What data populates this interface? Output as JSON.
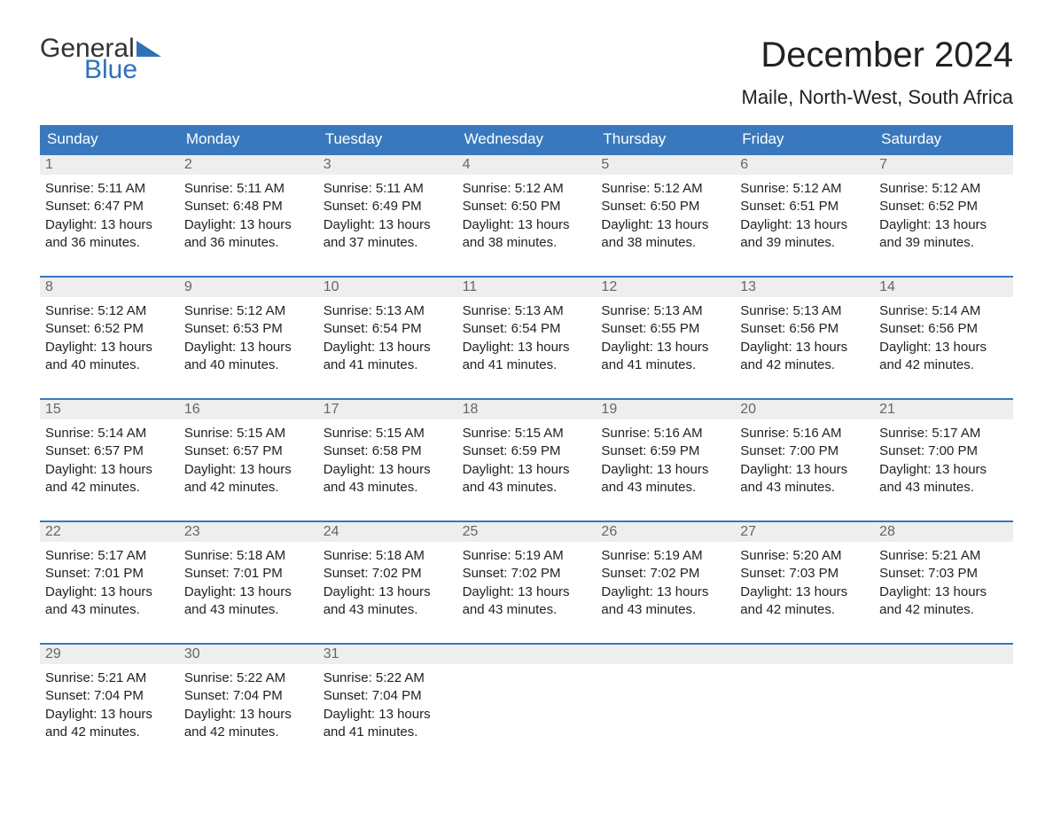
{
  "logo": {
    "part1": "General",
    "part2": "Blue"
  },
  "title": "December 2024",
  "location": "Maile, North-West, South Africa",
  "colors": {
    "header_bg": "#3a78bd",
    "header_text": "#ffffff",
    "daynum_bg": "#eeeeee",
    "daynum_text": "#666666",
    "body_text": "#222222",
    "logo_accent": "#2f72b9",
    "week_divider": "#3a78bd",
    "background": "#ffffff"
  },
  "typography": {
    "title_fontsize": 40,
    "location_fontsize": 22,
    "dow_fontsize": 17,
    "daynum_fontsize": 16,
    "detail_fontsize": 15,
    "logo_fontsize": 30
  },
  "layout": {
    "columns": 7,
    "rows": 5
  },
  "days_of_week": [
    "Sunday",
    "Monday",
    "Tuesday",
    "Wednesday",
    "Thursday",
    "Friday",
    "Saturday"
  ],
  "weeks": [
    [
      {
        "n": "1",
        "sunrise": "Sunrise: 5:11 AM",
        "sunset": "Sunset: 6:47 PM",
        "d1": "Daylight: 13 hours",
        "d2": "and 36 minutes."
      },
      {
        "n": "2",
        "sunrise": "Sunrise: 5:11 AM",
        "sunset": "Sunset: 6:48 PM",
        "d1": "Daylight: 13 hours",
        "d2": "and 36 minutes."
      },
      {
        "n": "3",
        "sunrise": "Sunrise: 5:11 AM",
        "sunset": "Sunset: 6:49 PM",
        "d1": "Daylight: 13 hours",
        "d2": "and 37 minutes."
      },
      {
        "n": "4",
        "sunrise": "Sunrise: 5:12 AM",
        "sunset": "Sunset: 6:50 PM",
        "d1": "Daylight: 13 hours",
        "d2": "and 38 minutes."
      },
      {
        "n": "5",
        "sunrise": "Sunrise: 5:12 AM",
        "sunset": "Sunset: 6:50 PM",
        "d1": "Daylight: 13 hours",
        "d2": "and 38 minutes."
      },
      {
        "n": "6",
        "sunrise": "Sunrise: 5:12 AM",
        "sunset": "Sunset: 6:51 PM",
        "d1": "Daylight: 13 hours",
        "d2": "and 39 minutes."
      },
      {
        "n": "7",
        "sunrise": "Sunrise: 5:12 AM",
        "sunset": "Sunset: 6:52 PM",
        "d1": "Daylight: 13 hours",
        "d2": "and 39 minutes."
      }
    ],
    [
      {
        "n": "8",
        "sunrise": "Sunrise: 5:12 AM",
        "sunset": "Sunset: 6:52 PM",
        "d1": "Daylight: 13 hours",
        "d2": "and 40 minutes."
      },
      {
        "n": "9",
        "sunrise": "Sunrise: 5:12 AM",
        "sunset": "Sunset: 6:53 PM",
        "d1": "Daylight: 13 hours",
        "d2": "and 40 minutes."
      },
      {
        "n": "10",
        "sunrise": "Sunrise: 5:13 AM",
        "sunset": "Sunset: 6:54 PM",
        "d1": "Daylight: 13 hours",
        "d2": "and 41 minutes."
      },
      {
        "n": "11",
        "sunrise": "Sunrise: 5:13 AM",
        "sunset": "Sunset: 6:54 PM",
        "d1": "Daylight: 13 hours",
        "d2": "and 41 minutes."
      },
      {
        "n": "12",
        "sunrise": "Sunrise: 5:13 AM",
        "sunset": "Sunset: 6:55 PM",
        "d1": "Daylight: 13 hours",
        "d2": "and 41 minutes."
      },
      {
        "n": "13",
        "sunrise": "Sunrise: 5:13 AM",
        "sunset": "Sunset: 6:56 PM",
        "d1": "Daylight: 13 hours",
        "d2": "and 42 minutes."
      },
      {
        "n": "14",
        "sunrise": "Sunrise: 5:14 AM",
        "sunset": "Sunset: 6:56 PM",
        "d1": "Daylight: 13 hours",
        "d2": "and 42 minutes."
      }
    ],
    [
      {
        "n": "15",
        "sunrise": "Sunrise: 5:14 AM",
        "sunset": "Sunset: 6:57 PM",
        "d1": "Daylight: 13 hours",
        "d2": "and 42 minutes."
      },
      {
        "n": "16",
        "sunrise": "Sunrise: 5:15 AM",
        "sunset": "Sunset: 6:57 PM",
        "d1": "Daylight: 13 hours",
        "d2": "and 42 minutes."
      },
      {
        "n": "17",
        "sunrise": "Sunrise: 5:15 AM",
        "sunset": "Sunset: 6:58 PM",
        "d1": "Daylight: 13 hours",
        "d2": "and 43 minutes."
      },
      {
        "n": "18",
        "sunrise": "Sunrise: 5:15 AM",
        "sunset": "Sunset: 6:59 PM",
        "d1": "Daylight: 13 hours",
        "d2": "and 43 minutes."
      },
      {
        "n": "19",
        "sunrise": "Sunrise: 5:16 AM",
        "sunset": "Sunset: 6:59 PM",
        "d1": "Daylight: 13 hours",
        "d2": "and 43 minutes."
      },
      {
        "n": "20",
        "sunrise": "Sunrise: 5:16 AM",
        "sunset": "Sunset: 7:00 PM",
        "d1": "Daylight: 13 hours",
        "d2": "and 43 minutes."
      },
      {
        "n": "21",
        "sunrise": "Sunrise: 5:17 AM",
        "sunset": "Sunset: 7:00 PM",
        "d1": "Daylight: 13 hours",
        "d2": "and 43 minutes."
      }
    ],
    [
      {
        "n": "22",
        "sunrise": "Sunrise: 5:17 AM",
        "sunset": "Sunset: 7:01 PM",
        "d1": "Daylight: 13 hours",
        "d2": "and 43 minutes."
      },
      {
        "n": "23",
        "sunrise": "Sunrise: 5:18 AM",
        "sunset": "Sunset: 7:01 PM",
        "d1": "Daylight: 13 hours",
        "d2": "and 43 minutes."
      },
      {
        "n": "24",
        "sunrise": "Sunrise: 5:18 AM",
        "sunset": "Sunset: 7:02 PM",
        "d1": "Daylight: 13 hours",
        "d2": "and 43 minutes."
      },
      {
        "n": "25",
        "sunrise": "Sunrise: 5:19 AM",
        "sunset": "Sunset: 7:02 PM",
        "d1": "Daylight: 13 hours",
        "d2": "and 43 minutes."
      },
      {
        "n": "26",
        "sunrise": "Sunrise: 5:19 AM",
        "sunset": "Sunset: 7:02 PM",
        "d1": "Daylight: 13 hours",
        "d2": "and 43 minutes."
      },
      {
        "n": "27",
        "sunrise": "Sunrise: 5:20 AM",
        "sunset": "Sunset: 7:03 PM",
        "d1": "Daylight: 13 hours",
        "d2": "and 42 minutes."
      },
      {
        "n": "28",
        "sunrise": "Sunrise: 5:21 AM",
        "sunset": "Sunset: 7:03 PM",
        "d1": "Daylight: 13 hours",
        "d2": "and 42 minutes."
      }
    ],
    [
      {
        "n": "29",
        "sunrise": "Sunrise: 5:21 AM",
        "sunset": "Sunset: 7:04 PM",
        "d1": "Daylight: 13 hours",
        "d2": "and 42 minutes."
      },
      {
        "n": "30",
        "sunrise": "Sunrise: 5:22 AM",
        "sunset": "Sunset: 7:04 PM",
        "d1": "Daylight: 13 hours",
        "d2": "and 42 minutes."
      },
      {
        "n": "31",
        "sunrise": "Sunrise: 5:22 AM",
        "sunset": "Sunset: 7:04 PM",
        "d1": "Daylight: 13 hours",
        "d2": "and 41 minutes."
      },
      {
        "n": "",
        "sunrise": "",
        "sunset": "",
        "d1": "",
        "d2": ""
      },
      {
        "n": "",
        "sunrise": "",
        "sunset": "",
        "d1": "",
        "d2": ""
      },
      {
        "n": "",
        "sunrise": "",
        "sunset": "",
        "d1": "",
        "d2": ""
      },
      {
        "n": "",
        "sunrise": "",
        "sunset": "",
        "d1": "",
        "d2": ""
      }
    ]
  ]
}
